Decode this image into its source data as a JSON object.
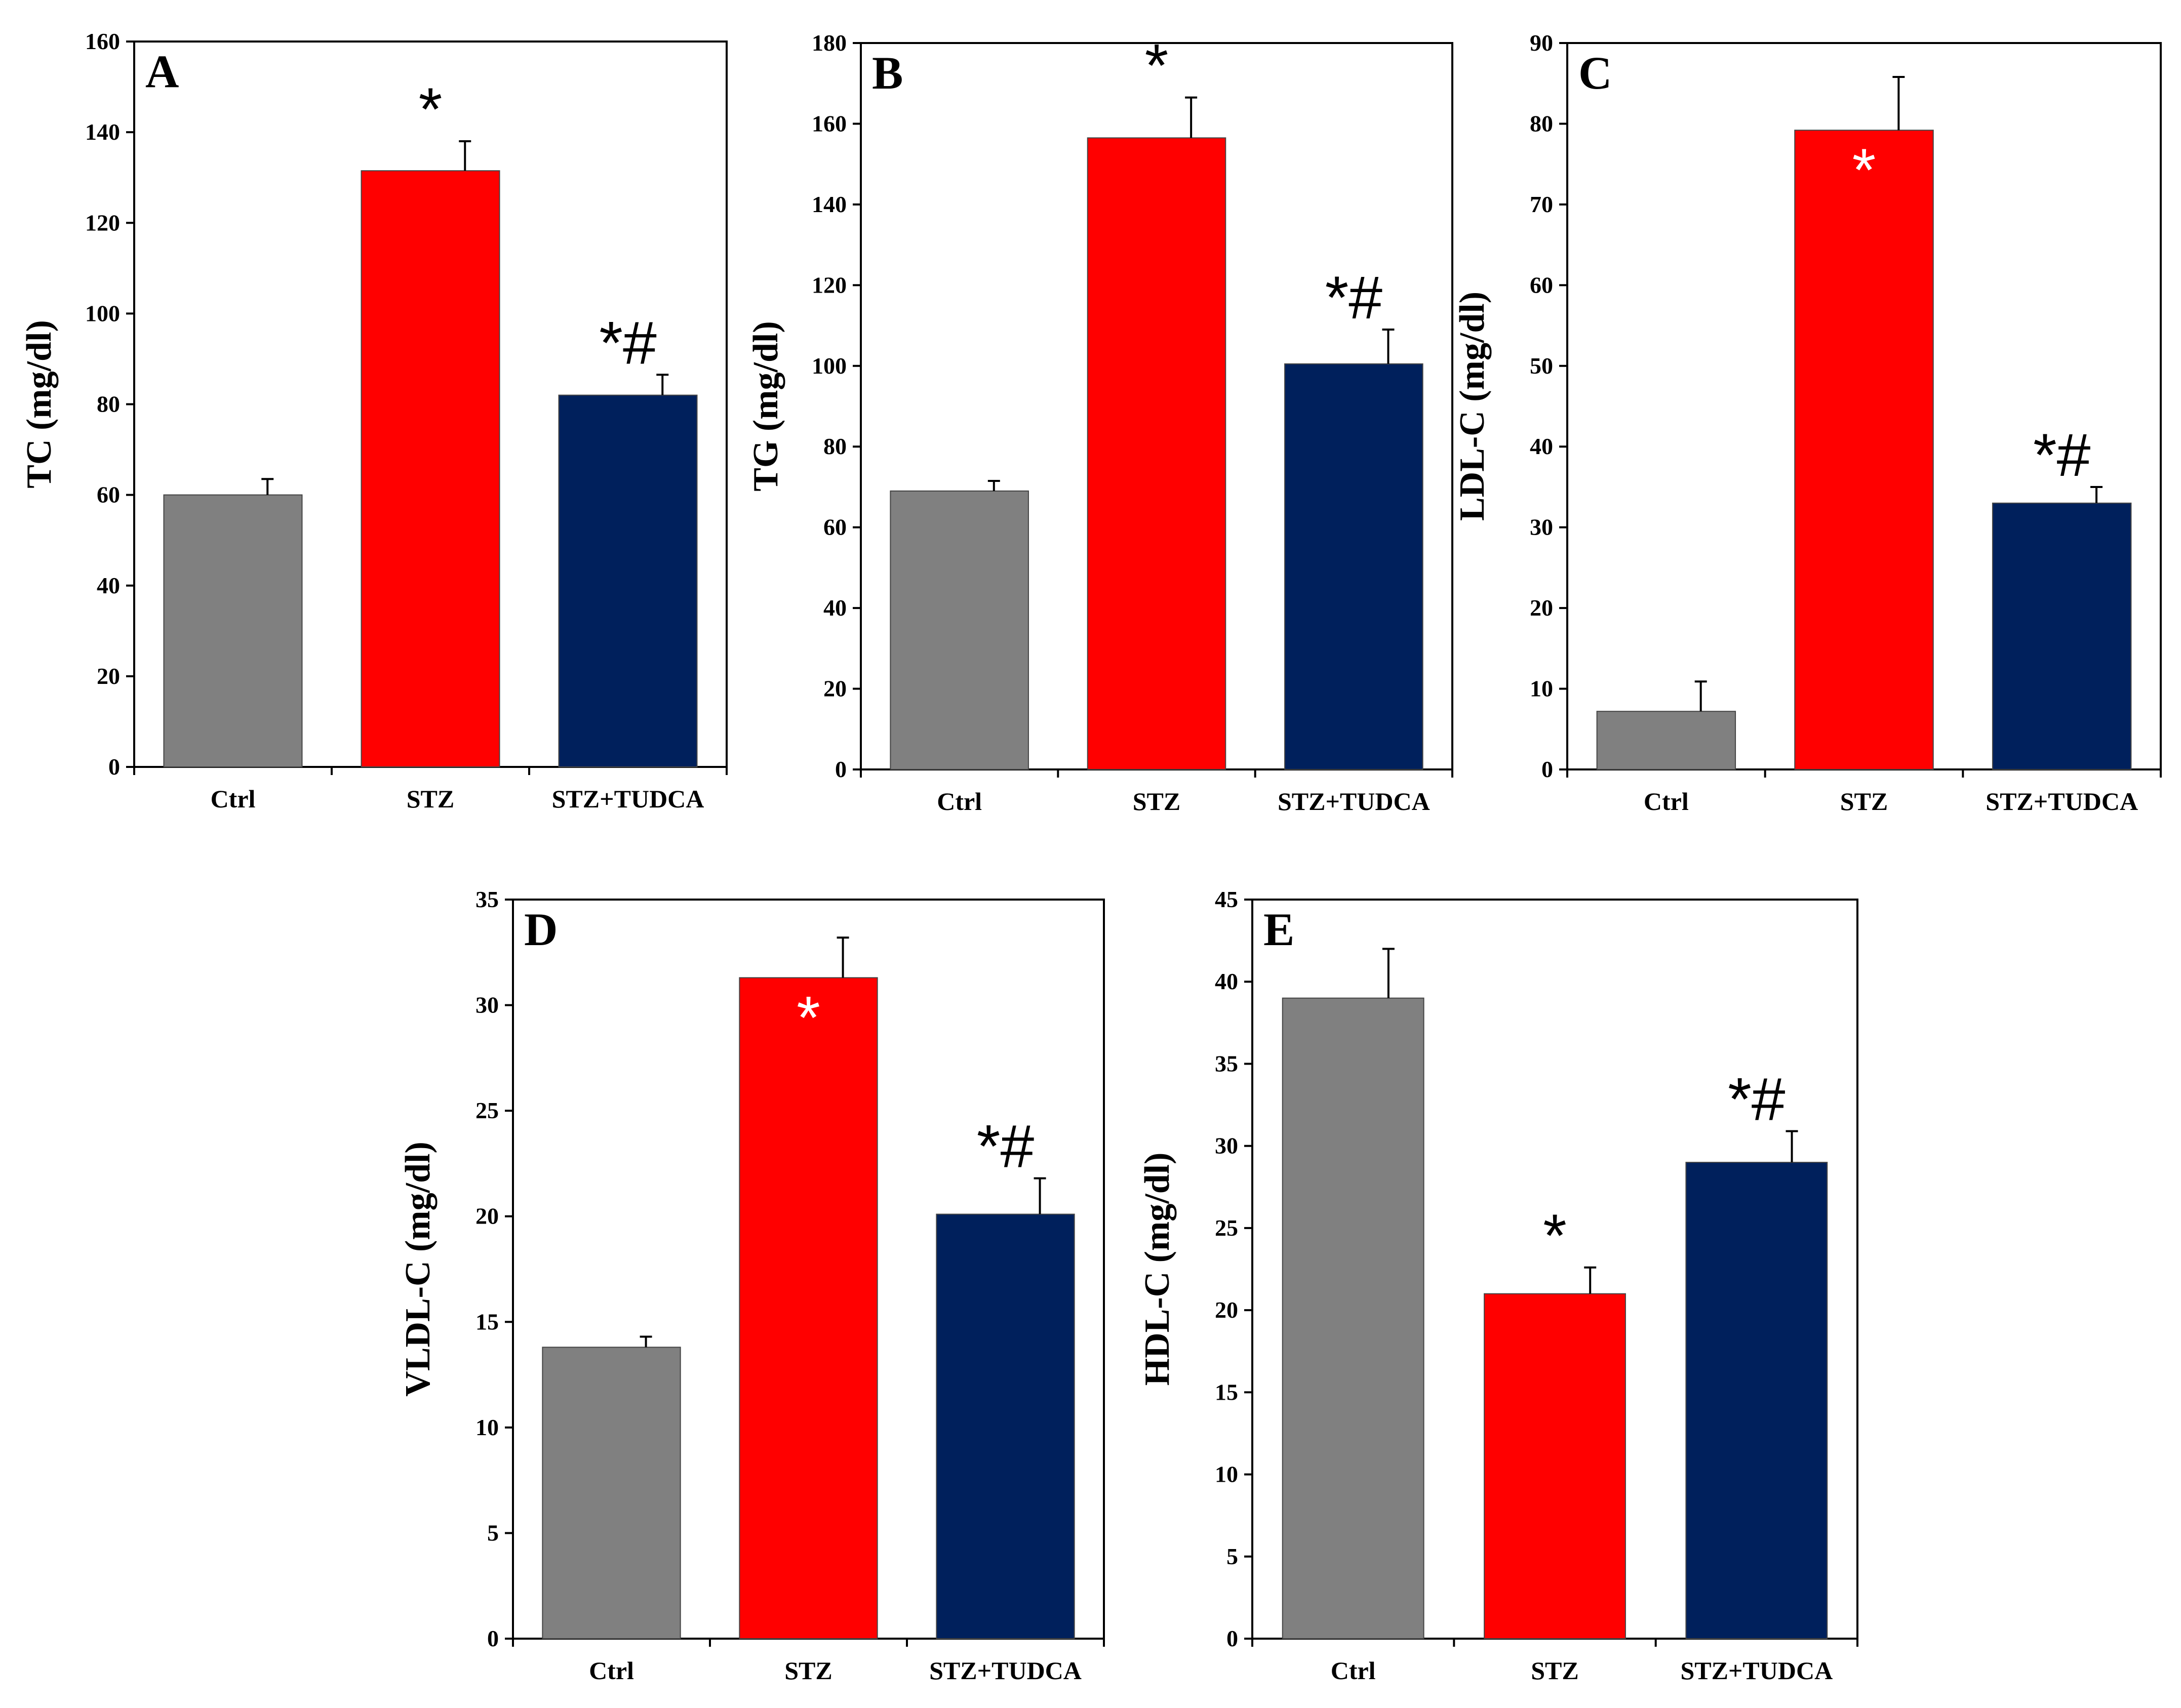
{
  "colors": {
    "Ctrl": "#808080",
    "STZ": "#ff0000",
    "STZ+TUDCA": "#00205c",
    "annotation_dark": "#000000",
    "annotation_light": "#ffffff"
  },
  "chart_data": [
    {
      "panel": "A",
      "type": "bar",
      "ylabel": "TC (mg/dl)",
      "xlabel": "",
      "categories": [
        "Ctrl",
        "STZ",
        "STZ+TUDCA"
      ],
      "values": [
        60,
        131.5,
        82
      ],
      "errors": [
        3.5,
        6.5,
        4.5
      ],
      "annotations": [
        "",
        "*",
        "*#"
      ],
      "annotation_inside": [
        false,
        false,
        false
      ],
      "ylim": [
        0,
        160
      ],
      "yticks": [
        0,
        20,
        40,
        60,
        80,
        100,
        120,
        140,
        160
      ]
    },
    {
      "panel": "B",
      "type": "bar",
      "ylabel": "TG (mg/dl)",
      "xlabel": "",
      "categories": [
        "Ctrl",
        "STZ",
        "STZ+TUDCA"
      ],
      "values": [
        69,
        156.5,
        100.5
      ],
      "errors": [
        2.5,
        10,
        8.5
      ],
      "annotations": [
        "",
        "*",
        "*#"
      ],
      "annotation_inside": [
        false,
        false,
        false
      ],
      "ylim": [
        0,
        180
      ],
      "yticks": [
        0,
        20,
        40,
        60,
        80,
        100,
        120,
        140,
        160,
        180
      ]
    },
    {
      "panel": "C",
      "type": "bar",
      "ylabel": "LDL-C (mg/dl)",
      "xlabel": "",
      "categories": [
        "Ctrl",
        "STZ",
        "STZ+TUDCA"
      ],
      "values": [
        7.2,
        79.2,
        33
      ],
      "errors": [
        3.7,
        6.6,
        2
      ],
      "annotations": [
        "",
        "*",
        "*#"
      ],
      "annotation_inside": [
        false,
        true,
        false
      ],
      "ylim": [
        0,
        90
      ],
      "yticks": [
        0,
        10,
        20,
        30,
        40,
        50,
        60,
        70,
        80,
        90
      ]
    },
    {
      "panel": "D",
      "type": "bar",
      "ylabel": "VLDL-C (mg/dl)",
      "xlabel": "",
      "categories": [
        "Ctrl",
        "STZ",
        "STZ+TUDCA"
      ],
      "values": [
        13.8,
        31.3,
        20.1
      ],
      "errors": [
        0.5,
        1.9,
        1.7
      ],
      "annotations": [
        "",
        "*",
        "*#"
      ],
      "annotation_inside": [
        false,
        true,
        false
      ],
      "ylim": [
        0,
        35
      ],
      "yticks": [
        0,
        5,
        10,
        15,
        20,
        25,
        30,
        35
      ]
    },
    {
      "panel": "E",
      "type": "bar",
      "ylabel": "HDL-C (mg/dl)",
      "xlabel": "",
      "categories": [
        "Ctrl",
        "STZ",
        "STZ+TUDCA"
      ],
      "values": [
        39,
        21,
        29
      ],
      "errors": [
        3,
        1.6,
        1.9
      ],
      "annotations": [
        "",
        "*",
        "*#"
      ],
      "annotation_inside": [
        false,
        false,
        false
      ],
      "ylim": [
        0,
        45
      ],
      "yticks": [
        0,
        5,
        10,
        15,
        20,
        25,
        30,
        35,
        40,
        45
      ]
    }
  ]
}
